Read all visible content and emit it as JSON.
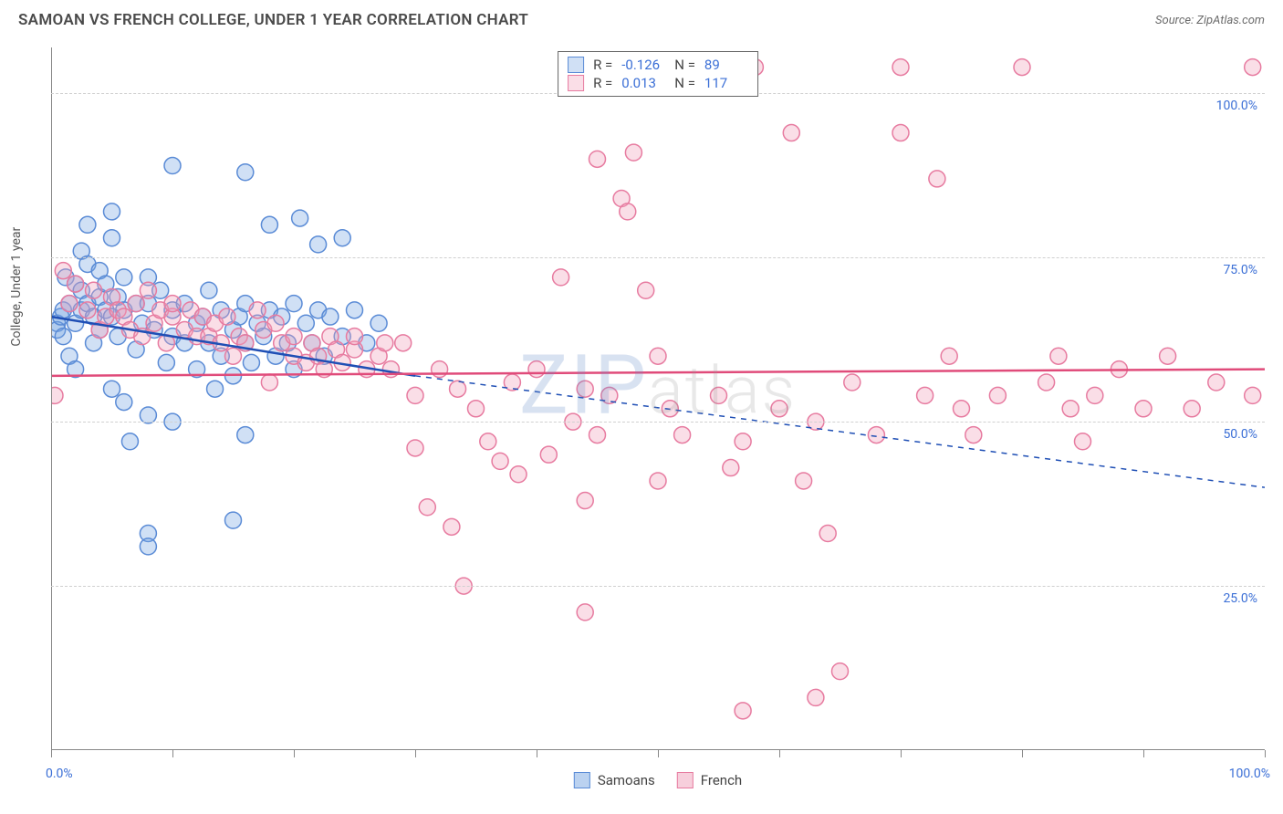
{
  "title": "SAMOAN VS FRENCH COLLEGE, UNDER 1 YEAR CORRELATION CHART",
  "source": "Source: ZipAtlas.com",
  "ylabel": "College, Under 1 year",
  "watermark": {
    "lead": "ZIP",
    "rest": "atlas"
  },
  "chart": {
    "type": "scatter",
    "xlim": [
      0,
      100
    ],
    "ylim": [
      0,
      107
    ],
    "x_tick_positions": [
      0,
      10,
      20,
      30,
      40,
      50,
      60,
      70,
      80,
      90,
      100
    ],
    "x_tick_labels": {
      "0": "0.0%",
      "100": "100.0%"
    },
    "y_grid_positions": [
      25,
      50,
      75,
      100
    ],
    "y_tick_labels": {
      "25": "25.0%",
      "50": "50.0%",
      "75": "75.0%",
      "100": "100.0%"
    },
    "grid_color": "#d0d0d0",
    "background_color": "#ffffff",
    "axis_color": "#888888",
    "tick_label_color": "#3b6fd6",
    "marker_radius": 9,
    "marker_stroke_width": 1.5,
    "series": [
      {
        "name": "Samoans",
        "color_fill": "rgba(120,165,225,0.35)",
        "color_stroke": "#5a8bd6",
        "R": "-0.126",
        "N": "89",
        "trend": {
          "solid_from": [
            0,
            66
          ],
          "solid_to": [
            30,
            57
          ],
          "dash_to": [
            100,
            40
          ],
          "stroke": "#1f4fb5",
          "width": 2.5
        },
        "points": [
          [
            0.5,
            65
          ],
          [
            0.5,
            64
          ],
          [
            0.8,
            66
          ],
          [
            1,
            67
          ],
          [
            1,
            63
          ],
          [
            1.2,
            72
          ],
          [
            1.5,
            68
          ],
          [
            1.5,
            60
          ],
          [
            2,
            71
          ],
          [
            2,
            65
          ],
          [
            2,
            58
          ],
          [
            2.5,
            76
          ],
          [
            2.5,
            70
          ],
          [
            2.5,
            67
          ],
          [
            3,
            80
          ],
          [
            3,
            68
          ],
          [
            3,
            74
          ],
          [
            3.5,
            66
          ],
          [
            3.5,
            62
          ],
          [
            4,
            73
          ],
          [
            4,
            69
          ],
          [
            4,
            64
          ],
          [
            4.5,
            67
          ],
          [
            4.5,
            71
          ],
          [
            5,
            78
          ],
          [
            5,
            82
          ],
          [
            5,
            66
          ],
          [
            5,
            55
          ],
          [
            5.5,
            69
          ],
          [
            5.5,
            63
          ],
          [
            6,
            67
          ],
          [
            6,
            72
          ],
          [
            6,
            53
          ],
          [
            6.5,
            47
          ],
          [
            7,
            68
          ],
          [
            7,
            61
          ],
          [
            7.5,
            65
          ],
          [
            8,
            72
          ],
          [
            8,
            68
          ],
          [
            8,
            51
          ],
          [
            8,
            33
          ],
          [
            8,
            31
          ],
          [
            8.5,
            64
          ],
          [
            9,
            70
          ],
          [
            9.5,
            59
          ],
          [
            10,
            89
          ],
          [
            10,
            67
          ],
          [
            10,
            63
          ],
          [
            10,
            50
          ],
          [
            11,
            68
          ],
          [
            11,
            62
          ],
          [
            12,
            65
          ],
          [
            12,
            58
          ],
          [
            12.5,
            66
          ],
          [
            13,
            70
          ],
          [
            13,
            62
          ],
          [
            13.5,
            55
          ],
          [
            14,
            67
          ],
          [
            14,
            60
          ],
          [
            15,
            64
          ],
          [
            15,
            57
          ],
          [
            15.5,
            66
          ],
          [
            16,
            88
          ],
          [
            16,
            68
          ],
          [
            16,
            62
          ],
          [
            16.5,
            59
          ],
          [
            17,
            65
          ],
          [
            17.5,
            63
          ],
          [
            18,
            80
          ],
          [
            18,
            67
          ],
          [
            18.5,
            60
          ],
          [
            19,
            66
          ],
          [
            19.5,
            62
          ],
          [
            20,
            68
          ],
          [
            20,
            58
          ],
          [
            20.5,
            81
          ],
          [
            21,
            65
          ],
          [
            21.5,
            62
          ],
          [
            22,
            77
          ],
          [
            22,
            67
          ],
          [
            22.5,
            60
          ],
          [
            23,
            66
          ],
          [
            24,
            78
          ],
          [
            24,
            63
          ],
          [
            25,
            67
          ],
          [
            26,
            62
          ],
          [
            27,
            65
          ],
          [
            15,
            35
          ],
          [
            16,
            48
          ]
        ]
      },
      {
        "name": "French",
        "color_fill": "rgba(240,160,185,0.35)",
        "color_stroke": "#e77ba0",
        "R": "0.013",
        "N": "117",
        "trend": {
          "solid_from": [
            0,
            57
          ],
          "solid_to": [
            100,
            58
          ],
          "stroke": "#e04b7a",
          "width": 2.5
        },
        "points": [
          [
            0.3,
            54
          ],
          [
            1,
            73
          ],
          [
            1.5,
            68
          ],
          [
            2,
            71
          ],
          [
            3,
            67
          ],
          [
            3.5,
            70
          ],
          [
            4,
            64
          ],
          [
            4.5,
            66
          ],
          [
            5,
            69
          ],
          [
            5.5,
            67
          ],
          [
            6,
            66
          ],
          [
            6.5,
            64
          ],
          [
            7,
            68
          ],
          [
            7.5,
            63
          ],
          [
            8,
            70
          ],
          [
            8.5,
            65
          ],
          [
            9,
            67
          ],
          [
            9.5,
            62
          ],
          [
            10,
            66
          ],
          [
            10,
            68
          ],
          [
            11,
            64
          ],
          [
            11.5,
            67
          ],
          [
            12,
            63
          ],
          [
            12.5,
            66
          ],
          [
            13,
            63
          ],
          [
            13.5,
            65
          ],
          [
            14,
            62
          ],
          [
            14.5,
            66
          ],
          [
            15,
            60
          ],
          [
            15.5,
            63
          ],
          [
            16,
            62
          ],
          [
            17,
            67
          ],
          [
            17.5,
            64
          ],
          [
            18,
            56
          ],
          [
            18.5,
            65
          ],
          [
            19,
            62
          ],
          [
            20,
            63
          ],
          [
            20,
            60
          ],
          [
            21,
            59
          ],
          [
            21.5,
            62
          ],
          [
            22,
            60
          ],
          [
            22.5,
            58
          ],
          [
            23,
            63
          ],
          [
            23.5,
            61
          ],
          [
            24,
            59
          ],
          [
            25,
            61
          ],
          [
            25,
            63
          ],
          [
            26,
            58
          ],
          [
            27,
            60
          ],
          [
            27.5,
            62
          ],
          [
            28,
            58
          ],
          [
            29,
            62
          ],
          [
            30,
            46
          ],
          [
            30,
            54
          ],
          [
            31,
            37
          ],
          [
            32,
            58
          ],
          [
            33,
            34
          ],
          [
            33.5,
            55
          ],
          [
            34,
            25
          ],
          [
            35,
            52
          ],
          [
            36,
            47
          ],
          [
            37,
            44
          ],
          [
            38,
            56
          ],
          [
            38.5,
            42
          ],
          [
            40,
            58
          ],
          [
            41,
            45
          ],
          [
            42,
            72
          ],
          [
            43,
            50
          ],
          [
            44,
            55
          ],
          [
            44,
            38
          ],
          [
            44,
            21
          ],
          [
            45,
            90
          ],
          [
            45,
            48
          ],
          [
            46,
            54
          ],
          [
            47,
            84
          ],
          [
            47.5,
            82
          ],
          [
            48,
            91
          ],
          [
            49,
            70
          ],
          [
            50,
            60
          ],
          [
            50,
            41
          ],
          [
            51,
            52
          ],
          [
            52,
            48
          ],
          [
            55,
            54
          ],
          [
            56,
            43
          ],
          [
            57,
            47
          ],
          [
            57,
            6
          ],
          [
            58,
            104
          ],
          [
            60,
            52
          ],
          [
            61,
            94
          ],
          [
            62,
            41
          ],
          [
            63,
            50
          ],
          [
            63,
            8
          ],
          [
            64,
            33
          ],
          [
            65,
            12
          ],
          [
            66,
            56
          ],
          [
            68,
            48
          ],
          [
            70,
            104
          ],
          [
            70,
            94
          ],
          [
            72,
            54
          ],
          [
            73,
            87
          ],
          [
            74,
            60
          ],
          [
            75,
            52
          ],
          [
            76,
            48
          ],
          [
            78,
            54
          ],
          [
            80,
            104
          ],
          [
            82,
            56
          ],
          [
            83,
            60
          ],
          [
            84,
            52
          ],
          [
            85,
            47
          ],
          [
            86,
            54
          ],
          [
            88,
            58
          ],
          [
            90,
            52
          ],
          [
            92,
            60
          ],
          [
            94,
            52
          ],
          [
            96,
            56
          ],
          [
            99,
            104
          ],
          [
            99,
            54
          ]
        ]
      }
    ]
  },
  "legend_bottom": [
    {
      "label": "Samoans",
      "fill": "rgba(120,165,225,0.5)",
      "stroke": "#5a8bd6"
    },
    {
      "label": "French",
      "fill": "rgba(240,160,185,0.5)",
      "stroke": "#e77ba0"
    }
  ]
}
